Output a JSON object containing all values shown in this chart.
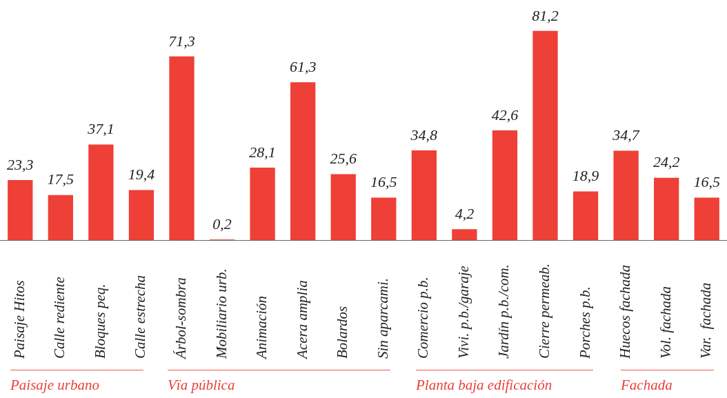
{
  "chart_data": {
    "type": "bar",
    "categories": [
      "Paisaje Hitos",
      "Calle rediente",
      "Bloques peq.",
      "Calle estrecha",
      "Árbol-sombra",
      "Mobiliario urb.",
      "Animación",
      "Acera amplia",
      "Bolardos",
      "Sin aparcami.",
      "Comercio p.b.",
      "Vivi. p.b./garaje",
      "Jardín p.b./com.",
      "Cierre permeab.",
      "Porches p.b.",
      "Huecos fachada",
      "Vol. fachada",
      "Var.  fachada"
    ],
    "values": [
      23.3,
      17.5,
      37.1,
      19.4,
      71.3,
      0.2,
      28.1,
      61.3,
      25.6,
      16.5,
      34.8,
      4.2,
      42.6,
      81.2,
      18.9,
      34.7,
      24.2,
      16.5
    ],
    "value_labels": [
      "23,3",
      "17,5",
      "37,1",
      "19,4",
      "71,3",
      "0,2",
      "28,1",
      "61,3",
      "25,6",
      "16,5",
      "34,8",
      "4,2",
      "42,6",
      "81,2",
      "18,9",
      "34,7",
      "24,2",
      "16,5"
    ],
    "color": "#ee4036",
    "annotations": [
      "Paisaje urbano",
      "Vïa pública",
      "Planta baja edificación",
      "Fachada"
    ],
    "grid": false,
    "legend": false
  }
}
